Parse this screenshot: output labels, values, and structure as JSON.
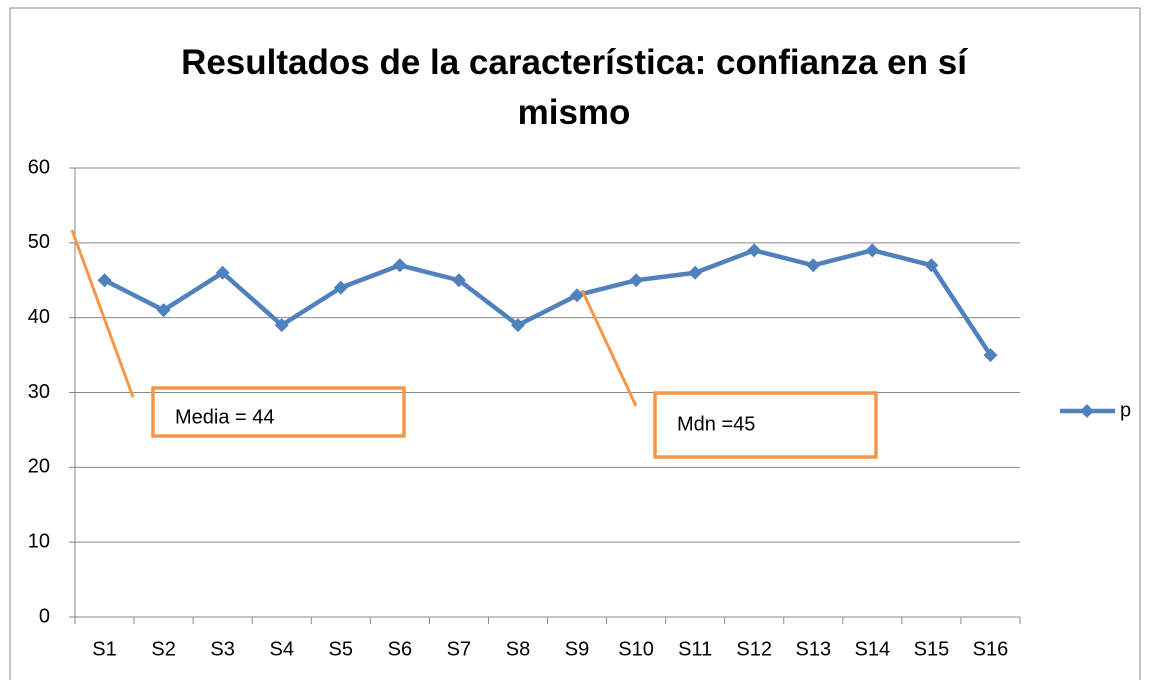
{
  "chart_data": {
    "type": "line",
    "title": "Resultados de la característica: confianza en sí mismo",
    "categories": [
      "S1",
      "S2",
      "S3",
      "S4",
      "S5",
      "S6",
      "S7",
      "S8",
      "S9",
      "S10",
      "S11",
      "S12",
      "S13",
      "S14",
      "S15",
      "S16"
    ],
    "series": [
      {
        "name": "p",
        "color": "#4f81bd",
        "values": [
          45,
          41,
          46,
          39,
          44,
          47,
          45,
          39,
          43,
          45,
          46,
          49,
          47,
          49,
          47,
          35
        ]
      }
    ],
    "ylim": [
      0,
      60
    ],
    "yticks": [
      0,
      10,
      20,
      30,
      40,
      50,
      60
    ],
    "grid": true,
    "legend": "right",
    "annotations": [
      {
        "text": "Media = 44",
        "color": "#f79646"
      },
      {
        "text": "Mdn =45",
        "color": "#f79646"
      }
    ]
  }
}
